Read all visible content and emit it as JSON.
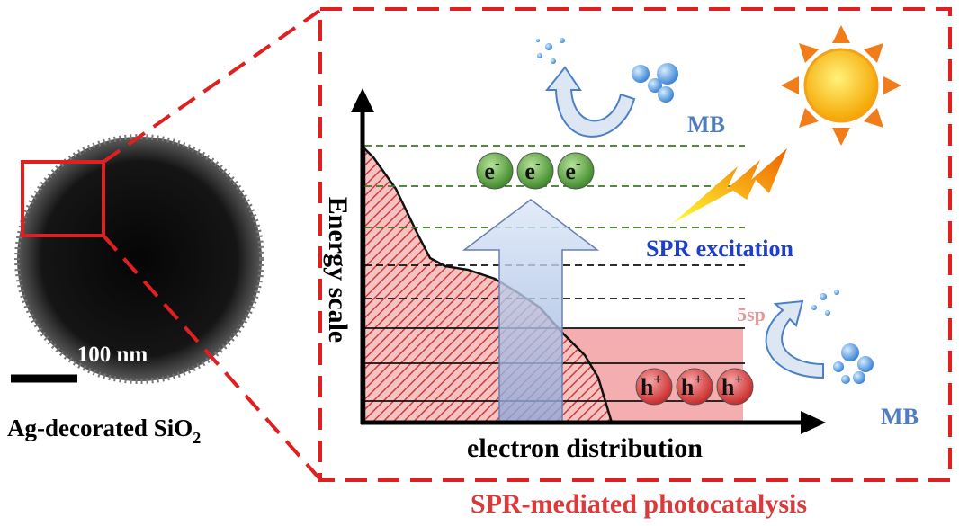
{
  "scale_bar": {
    "label": "100 nm"
  },
  "sample": {
    "label": "Ag-decorated SiO",
    "subscript": "2"
  },
  "diagram": {
    "y_axis_label": "Energy scale",
    "x_axis_label": "electron distribution",
    "excitation_label": "SPR excitation",
    "band_label": "5sp",
    "electrons": [
      {
        "symbol": "e",
        "charge": "-"
      },
      {
        "symbol": "e",
        "charge": "-"
      },
      {
        "symbol": "e",
        "charge": "-"
      }
    ],
    "holes": [
      {
        "symbol": "h",
        "charge": "+"
      },
      {
        "symbol": "h",
        "charge": "+"
      },
      {
        "symbol": "h",
        "charge": "+"
      }
    ],
    "products": [
      "MB",
      "MB"
    ]
  },
  "caption": "SPR-mediated photocatalysis"
}
